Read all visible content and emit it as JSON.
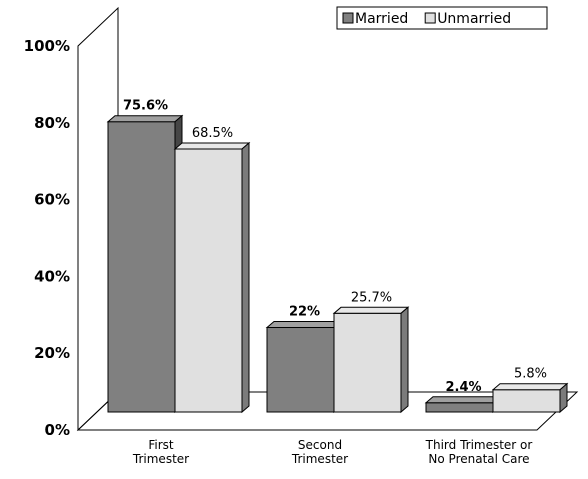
{
  "chart_data": {
    "type": "bar",
    "categories": [
      [
        "First",
        "Trimester"
      ],
      [
        "Second",
        "Trimester"
      ],
      [
        "Third Trimester or",
        "No Prenatal Care"
      ]
    ],
    "series": [
      {
        "name": "Married",
        "values": [
          75.6,
          22,
          2.4
        ],
        "labels": [
          "75.6%",
          "22%",
          "2.4%"
        ],
        "color": "#808080",
        "bold_labels": true
      },
      {
        "name": "Unmarried",
        "values": [
          68.5,
          25.7,
          5.8
        ],
        "labels": [
          "68.5%",
          "25.7%",
          "5.8%"
        ],
        "color": "#e0e0e0",
        "bold_labels": false
      }
    ],
    "ylim": [
      0,
      100
    ],
    "yticks": [
      "0%",
      "20%",
      "40%",
      "60%",
      "80%",
      "100%"
    ],
    "legend": "top-right",
    "style": "3d-clustered-bar"
  }
}
